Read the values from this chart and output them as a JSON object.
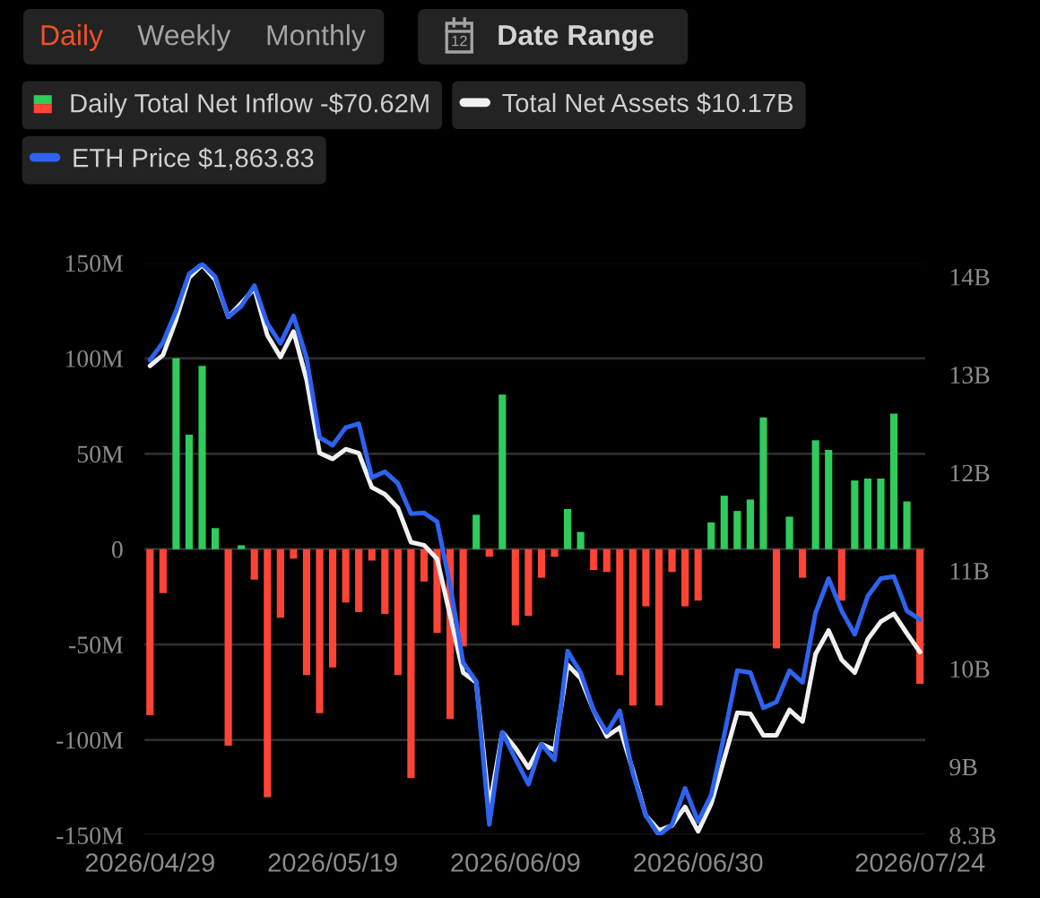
{
  "chart_data": {
    "type": "bar",
    "annotations": [
      "Daily",
      "Weekly",
      "Monthly",
      "12",
      "Date Range"
    ],
    "categories": [
      "2026/04/29",
      null,
      null,
      null,
      null,
      null,
      null,
      null,
      null,
      null,
      null,
      null,
      null,
      null,
      "2026/05/19",
      null,
      null,
      null,
      null,
      null,
      null,
      null,
      null,
      null,
      null,
      null,
      null,
      null,
      "2026/06/09",
      null,
      null,
      null,
      null,
      null,
      null,
      null,
      null,
      null,
      null,
      null,
      null,
      null,
      "2026/06/30",
      null,
      null,
      null,
      null,
      null,
      null,
      null,
      null,
      null,
      null,
      null,
      null,
      null,
      null,
      null,
      null,
      "2026/07/24"
    ],
    "series": [
      {
        "name": "Daily Total Net Inflow -$70.62M",
        "values": [
          -87,
          -23,
          100,
          60,
          96,
          11,
          -103,
          2,
          -16,
          -130,
          -36,
          -5,
          -66,
          -86,
          -62,
          -28,
          -33,
          -6,
          -34,
          -66,
          -120,
          -17,
          -44,
          -89,
          -51,
          18,
          -4,
          81,
          -40,
          -35,
          -15,
          -4,
          21,
          9,
          -11,
          -12,
          -66,
          -82,
          -30,
          -82,
          -12,
          -30,
          -27,
          14,
          28,
          20,
          26,
          69,
          -52,
          17,
          -15,
          57,
          52,
          -27,
          36,
          37,
          37,
          71,
          25,
          -70.62
        ],
        "colors": [
          "#ff4436",
          "#ff4436",
          "#2fcb5b",
          "#2fcb5b",
          "#2fcb5b",
          "#2fcb5b",
          "#ff4436",
          "#2fcb5b",
          "#ff4436",
          "#ff4436",
          "#ff4436",
          "#ff4436",
          "#ff4436",
          "#ff4436",
          "#ff4436",
          "#ff4436",
          "#ff4436",
          "#ff4436",
          "#ff4436",
          "#ff4436",
          "#ff4436",
          "#ff4436",
          "#ff4436",
          "#ff4436",
          "#ff4436",
          "#2fcb5b",
          "#ff4436",
          "#2fcb5b",
          "#ff4436",
          "#ff4436",
          "#ff4436",
          "#ff4436",
          "#2fcb5b",
          "#2fcb5b",
          "#ff4436",
          "#ff4436",
          "#ff4436",
          "#ff4436",
          "#ff4436",
          "#ff4436",
          "#ff4436",
          "#ff4436",
          "#ff4436",
          "#2fcb5b",
          "#2fcb5b",
          "#2fcb5b",
          "#2fcb5b",
          "#2fcb5b",
          "#ff4436",
          "#2fcb5b",
          "#ff4436",
          "#2fcb5b",
          "#2fcb5b",
          "#ff4436",
          "#2fcb5b",
          "#2fcb5b",
          "#2fcb5b",
          "#2fcb5b",
          "#2fcb5b",
          "#ff4436"
        ]
      },
      {
        "name": "Total Net Assets $10.17B",
        "type": "line",
        "axis": "y2",
        "color": "#f0f0f0",
        "values": [
          13.09,
          13.2,
          13.56,
          13.99,
          14.12,
          13.97,
          13.59,
          13.73,
          13.88,
          13.4,
          13.18,
          13.44,
          12.95,
          12.2,
          12.14,
          12.24,
          12.2,
          11.85,
          11.78,
          11.64,
          11.29,
          11.26,
          11.12,
          10.54,
          9.96,
          9.86,
          8.58,
          9.35,
          9.19,
          8.99,
          9.23,
          9.17,
          10.04,
          9.9,
          9.57,
          9.31,
          9.4,
          8.96,
          8.5,
          8.35,
          8.4,
          8.59,
          8.34,
          8.62,
          9.08,
          9.55,
          9.54,
          9.32,
          9.32,
          9.58,
          9.46,
          10.15,
          10.39,
          10.09,
          9.96,
          10.3,
          10.48,
          10.56,
          10.36,
          10.17
        ]
      },
      {
        "name": "ETH Price $1,863.83",
        "type": "line",
        "axis": "y2",
        "color": "#2d63f0",
        "values": [
          13.15,
          13.33,
          13.65,
          14.03,
          14.13,
          14.0,
          13.59,
          13.7,
          13.91,
          13.52,
          13.32,
          13.6,
          13.17,
          12.36,
          12.28,
          12.46,
          12.5,
          11.95,
          12.01,
          11.89,
          11.58,
          11.59,
          11.5,
          10.85,
          10.06,
          9.87,
          8.41,
          9.35,
          9.08,
          8.82,
          9.23,
          9.07,
          10.18,
          9.96,
          9.57,
          9.35,
          9.57,
          8.93,
          8.5,
          8.3,
          8.41,
          8.78,
          8.44,
          8.71,
          9.32,
          9.98,
          9.96,
          9.6,
          9.66,
          9.98,
          9.86,
          10.57,
          10.92,
          10.59,
          10.35,
          10.74,
          10.92,
          10.94,
          10.59,
          10.5
        ]
      }
    ],
    "ylim": [
      -150,
      150
    ],
    "yticks": [
      {
        "value": -150,
        "label": "-150M"
      },
      {
        "value": -100,
        "label": "-100M"
      },
      {
        "value": -50,
        "label": "-50M"
      },
      0,
      {
        "value": 50,
        "label": "50M"
      },
      {
        "value": 100,
        "label": "100M"
      },
      {
        "value": 150,
        "label": "150M"
      }
    ],
    "y2lim": [
      8.3,
      14.14
    ],
    "y2ticks": [
      {
        "value": 8.3,
        "label": "8.3B"
      },
      {
        "value": 9,
        "label": "9B"
      },
      {
        "value": 10,
        "label": "10B"
      },
      {
        "value": 11,
        "label": "11B"
      },
      {
        "value": 12,
        "label": "12B"
      },
      {
        "value": 13,
        "label": "13B"
      },
      {
        "value": 14,
        "label": "14B"
      }
    ],
    "grid": "y",
    "legend": "top"
  }
}
